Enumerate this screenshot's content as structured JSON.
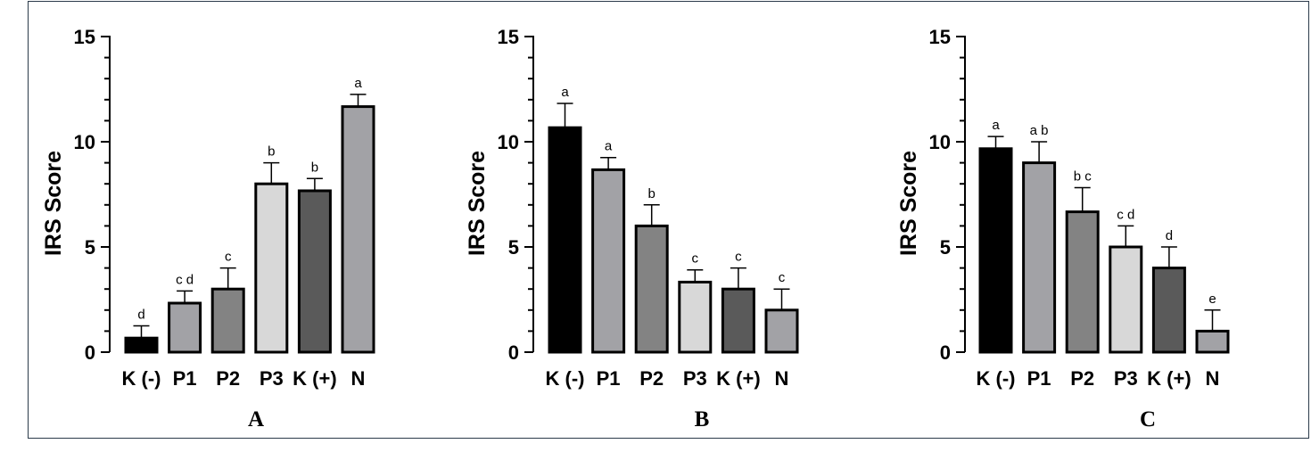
{
  "chart_data": [
    {
      "type": "bar",
      "panel_label": "A",
      "ylabel": "IRS Score",
      "ylim": [
        0,
        15
      ],
      "yticks": [
        "0",
        "5",
        "10",
        "15"
      ],
      "categories": [
        "K (-)",
        "P1",
        "P2",
        "P3",
        "K (+)",
        "N"
      ],
      "values": [
        0.67,
        2.33,
        3.0,
        8.0,
        7.67,
        11.67
      ],
      "errors": [
        0.58,
        0.58,
        1.0,
        1.0,
        0.58,
        0.58
      ],
      "significance": [
        "d",
        "c d",
        "c",
        "b",
        "b",
        "a"
      ],
      "colors": [
        "#000000",
        "#a2a2a6",
        "#838383",
        "#d8d8d8",
        "#5a5a5a",
        "#a2a2a6"
      ]
    },
    {
      "type": "bar",
      "panel_label": "B",
      "ylabel": "IRS Score",
      "ylim": [
        0,
        15
      ],
      "yticks": [
        "0",
        "5",
        "10",
        "15"
      ],
      "categories": [
        "K (-)",
        "P1",
        "P2",
        "P3",
        "K (+)",
        "N"
      ],
      "values": [
        10.67,
        8.67,
        6.0,
        3.33,
        3.0,
        2.0
      ],
      "errors": [
        1.15,
        0.58,
        1.0,
        0.58,
        1.0,
        1.0
      ],
      "significance": [
        "a",
        "a",
        "b",
        "c",
        "c",
        "c"
      ],
      "colors": [
        "#000000",
        "#a2a2a6",
        "#838383",
        "#d8d8d8",
        "#5a5a5a",
        "#a2a2a6"
      ]
    },
    {
      "type": "bar",
      "panel_label": "C",
      "ylabel": "IRS Score",
      "ylim": [
        0,
        15
      ],
      "yticks": [
        "0",
        "5",
        "10",
        "15"
      ],
      "categories": [
        "K (-)",
        "P1",
        "P2",
        "P3",
        "K (+)",
        "N"
      ],
      "values": [
        9.67,
        9.0,
        6.67,
        5.0,
        4.0,
        1.0
      ],
      "errors": [
        0.58,
        1.0,
        1.15,
        1.0,
        1.0,
        1.0
      ],
      "significance": [
        "a",
        "a b",
        "b c",
        "c d",
        "d",
        "e"
      ],
      "colors": [
        "#000000",
        "#a2a2a6",
        "#838383",
        "#d8d8d8",
        "#5a5a5a",
        "#a2a2a6"
      ]
    }
  ]
}
